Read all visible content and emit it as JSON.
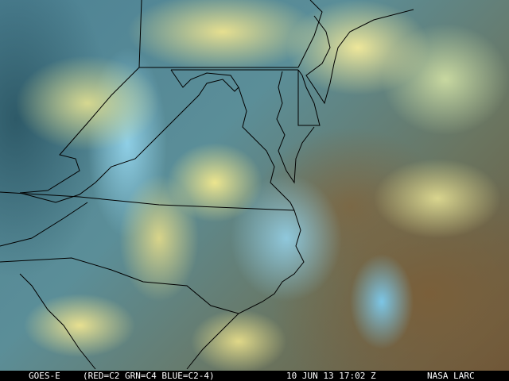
{
  "image": {
    "type": "satellite false-color composite",
    "region": "US Mid-Atlantic and Southeast",
    "colors": {
      "cloud_yellow": "#e8e08a",
      "cloud_blue": "#8fd0e8",
      "land_teal": "#3d6f7c",
      "ocean_brown": "#7a5f3a",
      "borders": "#000000"
    }
  },
  "caption": {
    "satellite": "GOES-E",
    "channels": "(RED=C2 GRN=C4 BLUE=C2-4)",
    "datetime": "10 JUN 13 17:02 Z",
    "source": "NASA LARC"
  }
}
